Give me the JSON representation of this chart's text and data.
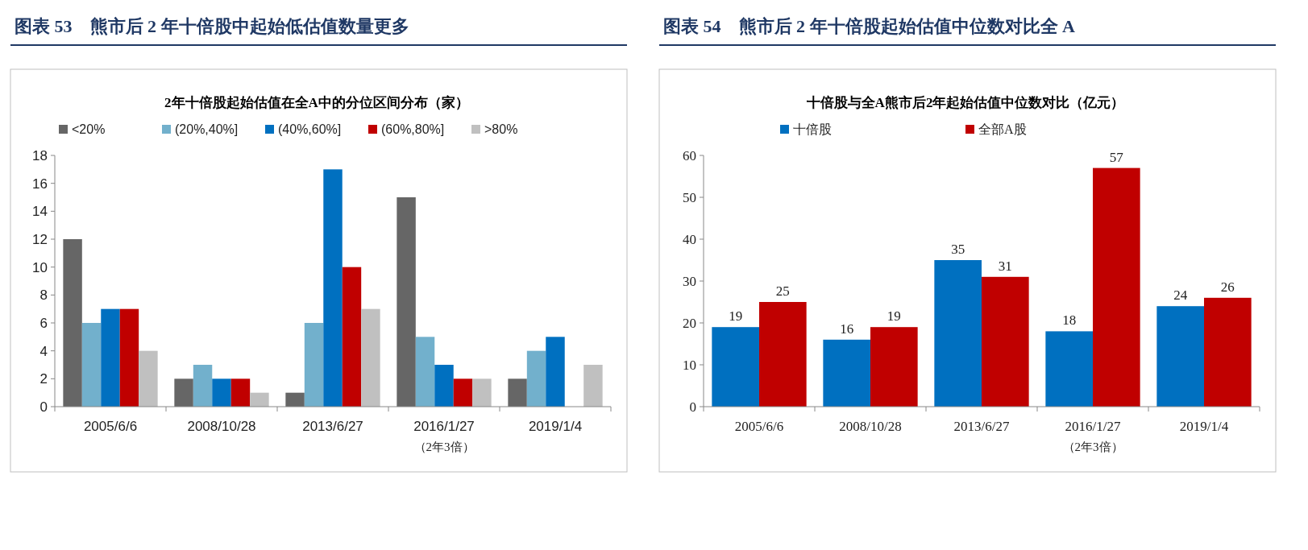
{
  "chart_data": [
    {
      "type": "bar",
      "title": "图表 53　熊市后 2 年十倍股中起始低估值数量更多",
      "subtitle": "2年十倍股起始估值在全A中的分位区间分布（家）",
      "categories": [
        "2005/6/6",
        "2008/10/28",
        "2013/6/27",
        "2016/1/27\n（2年3倍）",
        "2019/1/4"
      ],
      "series": [
        {
          "name": "<20%",
          "color": "#666666",
          "values": [
            12,
            2,
            1,
            15,
            2
          ]
        },
        {
          "name": "(20%,40%]",
          "color": "#72b0cc",
          "values": [
            6,
            3,
            6,
            5,
            4
          ]
        },
        {
          "name": "(40%,60%]",
          "color": "#0070c0",
          "values": [
            7,
            2,
            17,
            3,
            5
          ]
        },
        {
          "name": "(60%,80%]",
          "color": "#c00000",
          "values": [
            7,
            2,
            10,
            2,
            0
          ]
        },
        {
          "name": ">80%",
          "color": "#c0c0c0",
          "values": [
            4,
            1,
            7,
            2,
            3
          ]
        }
      ],
      "ylim": [
        0,
        18
      ],
      "yticks": [
        0,
        2,
        4,
        6,
        8,
        10,
        12,
        14,
        16,
        18
      ],
      "legend": "top"
    },
    {
      "type": "bar",
      "title": "图表 54　熊市后 2 年十倍股起始估值中位数对比全 A",
      "subtitle": "十倍股与全A熊市后2年起始估值中位数对比（亿元）",
      "categories": [
        "2005/6/6",
        "2008/10/28",
        "2013/6/27",
        "2016/1/27\n（2年3倍）",
        "2019/1/4"
      ],
      "series": [
        {
          "name": "十倍股",
          "color": "#0070c0",
          "values": [
            19,
            16,
            35,
            18,
            24
          ]
        },
        {
          "name": "全部A股",
          "color": "#c00000",
          "values": [
            25,
            19,
            31,
            57,
            26
          ]
        }
      ],
      "ylim": [
        0,
        60
      ],
      "yticks": [
        0,
        10,
        20,
        30,
        40,
        50,
        60
      ],
      "legend": "top",
      "data_labels": true
    }
  ]
}
